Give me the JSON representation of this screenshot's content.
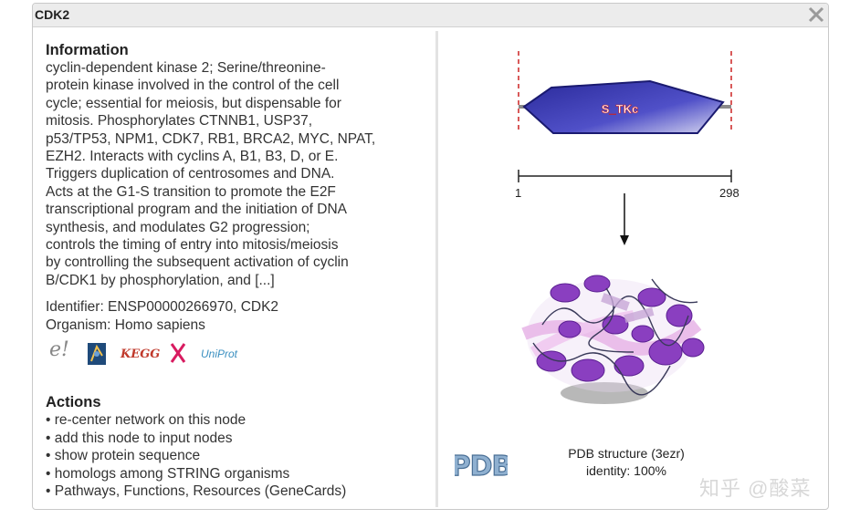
{
  "window": {
    "title": "CDK2"
  },
  "information": {
    "heading": "Information",
    "lines": [
      "cyclin-dependent kinase 2; Serine/threonine-",
      "protein kinase involved in the control of the cell",
      "cycle; essential for meiosis, but dispensable for",
      "mitosis. Phosphorylates CTNNB1, USP37,",
      "p53/TP53, NPM1, CDK7, RB1, BRCA2, MYC, NPAT,",
      "EZH2. Interacts with cyclins A, B1, B3, D, or E.",
      "Triggers duplication of centrosomes and DNA.",
      "Acts at the G1-S transition to promote the E2F",
      "transcriptional program and the initiation of DNA",
      "synthesis, and modulates G2 progression;",
      "controls the timing of entry into mitosis/meiosis",
      "by controlling the subsequent activation of cyclin",
      "B/CDK1 by phosphorylation, and [...]"
    ],
    "identifier": "Identifier: ENSP00000266970, CDK2",
    "organism": "Organism: Homo sapiens",
    "db_icons": {
      "ensembl_text": "e!",
      "kegg_text": "KEGG",
      "uniprot_text": "UniProt"
    }
  },
  "actions": {
    "heading": "Actions",
    "items": [
      "• re-center network on this node",
      "• add this node to input nodes",
      "• show protein sequence",
      "• homologs among STRING organisms",
      "• Pathways, Functions, Resources (GeneCards)"
    ]
  },
  "domain": {
    "label": "S_TKc",
    "start": "1",
    "end": "298"
  },
  "pdb": {
    "logo_text": "PDB",
    "structure": "PDB structure (3ezr)",
    "identity": "identity: 100%"
  },
  "watermark": "知乎 @酸菜",
  "colors": {
    "domain_fill": "#2a2a9a",
    "protein": "#8a3fc0",
    "accent_red": "#cc2222"
  }
}
